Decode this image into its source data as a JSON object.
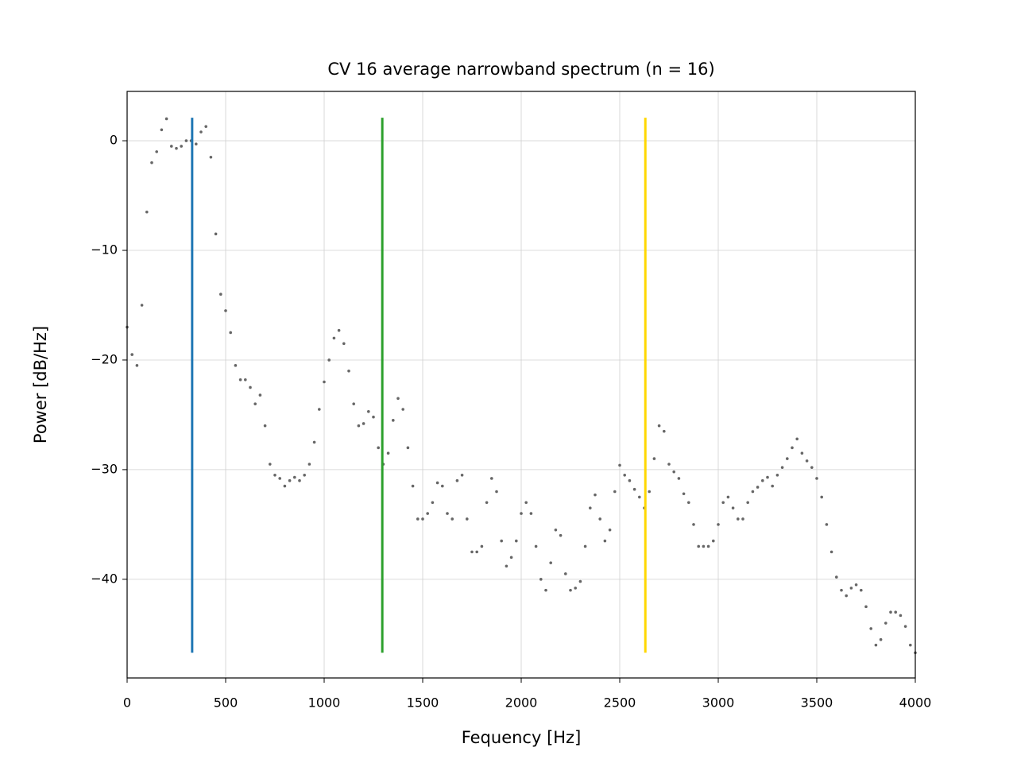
{
  "chart_data": {
    "type": "scatter",
    "title": "CV 16 average narrowband spectrum (n = 16)",
    "x_label": "Fequency [Hz]",
    "y_label": "Power [dB/Hz]",
    "xlim": [
      0,
      4000
    ],
    "ylim": [
      -49,
      4.5
    ],
    "xticks": [
      0,
      500,
      1000,
      1500,
      2000,
      2500,
      3000,
      3500,
      4000
    ],
    "yticks": [
      {
        "value": -40,
        "label": "−40"
      },
      {
        "value": -30,
        "label": "−30"
      },
      {
        "value": -20,
        "label": "−20"
      },
      {
        "value": -10,
        "label": "−10"
      },
      0
    ],
    "grid": true,
    "series": [
      {
        "color": "#666666",
        "x": [
          0,
          25,
          50,
          75,
          100,
          125,
          150,
          175,
          200,
          225,
          250,
          275,
          300,
          325,
          350,
          375,
          400,
          425,
          450,
          475,
          500,
          525,
          550,
          575,
          600,
          625,
          650,
          675,
          700,
          725,
          750,
          775,
          800,
          825,
          850,
          875,
          900,
          925,
          950,
          975,
          1000,
          1025,
          1050,
          1075,
          1100,
          1125,
          1150,
          1175,
          1200,
          1225,
          1250,
          1275,
          1300,
          1325,
          1350,
          1375,
          1400,
          1425,
          1450,
          1475,
          1500,
          1525,
          1550,
          1575,
          1600,
          1625,
          1650,
          1675,
          1700,
          1725,
          1750,
          1775,
          1800,
          1825,
          1850,
          1875,
          1900,
          1925,
          1950,
          1975,
          2000,
          2025,
          2050,
          2075,
          2100,
          2125,
          2150,
          2175,
          2200,
          2225,
          2250,
          2275,
          2300,
          2325,
          2350,
          2375,
          2400,
          2425,
          2450,
          2475,
          2500,
          2525,
          2550,
          2575,
          2600,
          2625,
          2650,
          2675,
          2700,
          2725,
          2750,
          2775,
          2800,
          2825,
          2850,
          2875,
          2900,
          2925,
          2950,
          2975,
          3000,
          3025,
          3050,
          3075,
          3100,
          3125,
          3150,
          3175,
          3200,
          3225,
          3250,
          3275,
          3300,
          3325,
          3350,
          3375,
          3400,
          3425,
          3450,
          3475,
          3500,
          3525,
          3550,
          3575,
          3600,
          3625,
          3650,
          3675,
          3700,
          3725,
          3750,
          3775,
          3800,
          3825,
          3850,
          3875,
          3900,
          3925,
          3950,
          3975,
          4000
        ],
        "values": [
          -17,
          -19.5,
          -20.5,
          -15,
          -6.5,
          -2,
          -1,
          1,
          2,
          -0.5,
          -0.7,
          -0.5,
          0,
          0,
          -0.3,
          0.8,
          1.3,
          -1.5,
          -8.5,
          -14,
          -15.5,
          -17.5,
          -20.5,
          -21.8,
          -21.8,
          -22.5,
          -24,
          -23.2,
          -26,
          -29.5,
          -30.5,
          -30.8,
          -31.5,
          -31,
          -30.7,
          -31,
          -30.5,
          -29.5,
          -27.5,
          -24.5,
          -22,
          -20,
          -18,
          -17.3,
          -18.5,
          -21,
          -24,
          -26,
          -25.8,
          -24.7,
          -25.2,
          -28,
          -29.5,
          -28.5,
          -25.5,
          -23.5,
          -24.5,
          -28,
          -31.5,
          -34.5,
          -34.5,
          -34,
          -33,
          -31.2,
          -31.5,
          -34,
          -34.5,
          -31,
          -30.5,
          -34.5,
          -37.5,
          -37.5,
          -37,
          -33,
          -30.8,
          -32,
          -36.5,
          -38.8,
          -38,
          -36.5,
          -34,
          -33,
          -34,
          -37,
          -40,
          -41,
          -38.5,
          -35.5,
          -36,
          -39.5,
          -41,
          -40.8,
          -40.2,
          -37,
          -33.5,
          -32.3,
          -34.5,
          -36.5,
          -35.5,
          -32,
          -29.6,
          -30.5,
          -31,
          -31.8,
          -32.5,
          -33.5,
          -32,
          -29,
          -26,
          -26.5,
          -29.5,
          -30.2,
          -30.8,
          -32.2,
          -33,
          -35,
          -37,
          -37,
          -37,
          -36.5,
          -35,
          -33,
          -32.5,
          -33.5,
          -34.5,
          -34.5,
          -33,
          -32,
          -31.6,
          -31,
          -30.7,
          -31.5,
          -30.5,
          -29.8,
          -29,
          -28,
          -27.2,
          -28.5,
          -29.2,
          -29.8,
          -30.8,
          -32.5,
          -35,
          -37.5,
          -39.8,
          -41,
          -41.5,
          -40.8,
          -40.5,
          -41,
          -42.5,
          -44.5,
          -46,
          -45.5,
          -44,
          -43,
          -43,
          -43.3,
          -44.3,
          -46,
          -46.7
        ]
      }
    ],
    "vlines": {
      "x": [
        330,
        1295,
        2630
      ],
      "colors": [
        "#1f77b4",
        "#2ca02c",
        "#ffd700"
      ],
      "ymin": -46.7,
      "ymax": 2.1
    }
  }
}
